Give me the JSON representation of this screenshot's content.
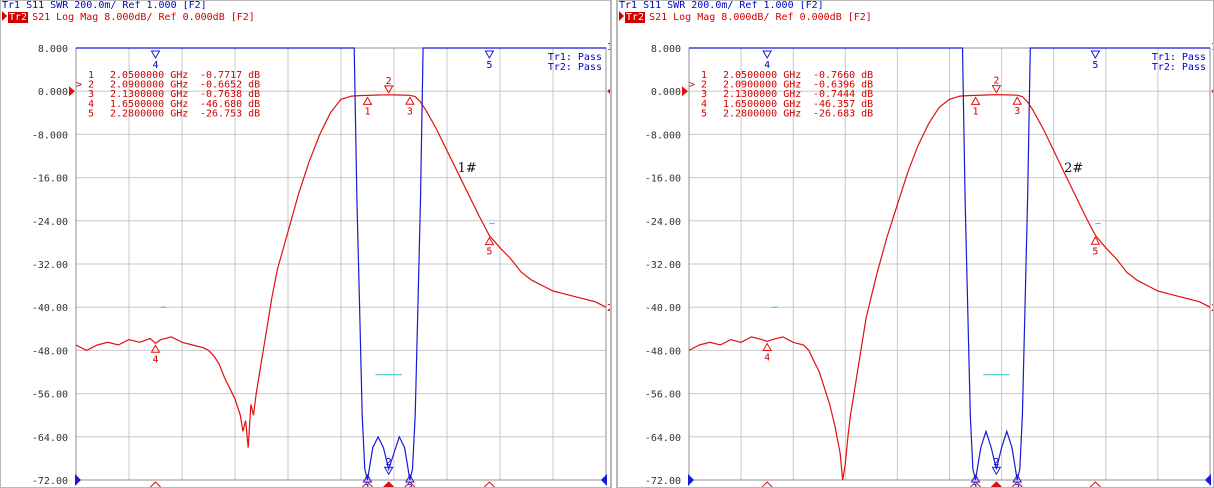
{
  "chart_data": [
    {
      "type": "line",
      "header": {
        "trace1": "Tr1 S11 SWR 200.0m/ Ref 1.000 [F2]",
        "trace2_badge": "Tr2",
        "trace2": "S21 Log Mag 8.000dB/ Ref 0.000dB [F2]"
      },
      "pass_labels": [
        "Tr1: Pass",
        "Tr2: Pass"
      ],
      "annotation": "1#",
      "yticks": [
        "8.000",
        "0.000",
        "-8.000",
        "-16.00",
        "-24.00",
        "-32.00",
        "-40.00",
        "-48.00",
        "-56.00",
        "-64.00",
        "-72.00"
      ],
      "ylim": [
        -72,
        8
      ],
      "xlim": [
        1.5,
        2.5
      ],
      "grid": true,
      "markers_table": [
        {
          "num": "1",
          "active": false,
          "freq": "2.0500000 GHz",
          "val": "-0.7717 dB"
        },
        {
          "num": "2",
          "active": true,
          "freq": "2.0900000 GHz",
          "val": "-0.6652 dB"
        },
        {
          "num": "3",
          "active": false,
          "freq": "2.1300000 GHz",
          "val": "-0.7638 dB"
        },
        {
          "num": "4",
          "active": false,
          "freq": "1.6500000 GHz",
          "val": "-46.680 dB"
        },
        {
          "num": "5",
          "active": false,
          "freq": "2.2800000 GHz",
          "val": "-26.753 dB"
        }
      ],
      "markers": [
        {
          "label": "1",
          "x": 2.05,
          "s21": -0.77
        },
        {
          "label": "2",
          "x": 2.09,
          "s21": -0.67
        },
        {
          "label": "3",
          "x": 2.13,
          "s21": -0.76
        },
        {
          "label": "4",
          "x": 1.65,
          "s21": -46.68
        },
        {
          "label": "5",
          "x": 2.28,
          "s21": -26.75
        }
      ],
      "series": [
        {
          "color": "#e01010",
          "x": [
            1.5,
            1.52,
            1.54,
            1.56,
            1.58,
            1.6,
            1.62,
            1.64,
            1.65,
            1.66,
            1.68,
            1.7,
            1.72,
            1.74,
            1.75,
            1.76,
            1.77,
            1.78,
            1.79,
            1.8,
            1.81,
            1.815,
            1.82,
            1.825,
            1.83,
            1.835,
            1.84,
            1.85,
            1.86,
            1.87,
            1.88,
            1.9,
            1.92,
            1.94,
            1.96,
            1.98,
            2.0,
            2.02,
            2.04,
            2.05,
            2.07,
            2.09,
            2.11,
            2.13,
            2.14,
            2.15,
            2.16,
            2.18,
            2.2,
            2.22,
            2.24,
            2.26,
            2.28,
            2.3,
            2.32,
            2.34,
            2.36,
            2.38,
            2.4,
            2.42,
            2.44,
            2.46,
            2.48,
            2.5
          ],
          "y": [
            -47,
            -48,
            -47,
            -46.5,
            -47,
            -46,
            -46.5,
            -45.8,
            -46.7,
            -46,
            -45.5,
            -46.5,
            -47,
            -47.5,
            -48,
            -49,
            -50.5,
            -53,
            -55,
            -57,
            -60,
            -63,
            -61,
            -66,
            -58,
            -60,
            -56,
            -50,
            -44,
            -38,
            -33,
            -26,
            -19,
            -13,
            -8,
            -4,
            -1.5,
            -0.9,
            -0.8,
            -0.77,
            -0.7,
            -0.67,
            -0.7,
            -0.76,
            -1,
            -2,
            -3.5,
            -7,
            -11,
            -15,
            -19,
            -23,
            -26.75,
            -29,
            -31,
            -33.5,
            -35,
            -36,
            -37,
            -37.5,
            -38,
            -38.5,
            -39,
            -40
          ]
        },
        {
          "color": "#1a1ad6",
          "x": [
            1.5,
            2.0,
            2.025,
            2.03,
            2.035,
            2.04,
            2.045,
            2.05,
            2.06,
            2.07,
            2.08,
            2.09,
            2.1,
            2.11,
            2.12,
            2.13,
            2.135,
            2.14,
            2.145,
            2.15,
            2.155,
            2.16,
            2.5
          ],
          "y": [
            8,
            8,
            8,
            -20,
            -40,
            -60,
            -70,
            -72,
            -66,
            -64,
            -66,
            -70,
            -67,
            -64,
            -66,
            -72,
            -70,
            -60,
            -40,
            -20,
            8,
            8,
            8
          ]
        }
      ],
      "limit_lines": [
        {
          "color": "#44cccc",
          "x": [
            2.065,
            2.115
          ],
          "y": -52.5
        },
        {
          "color": "#44cccc",
          "x": [
            1.66,
            1.67
          ],
          "y": -40
        },
        {
          "color": "#44cccc",
          "x": [
            2.28,
            2.29
          ],
          "y": -24.5
        }
      ]
    },
    {
      "type": "line",
      "header": {
        "trace1": "Tr1 S11 SWR 200.0m/ Ref 1.000 [F2]",
        "trace2_badge": "Tr2",
        "trace2": "S21 Log Mag 8.000dB/ Ref 0.000dB [F2]"
      },
      "pass_labels": [
        "Tr1: Pass",
        "Tr2: Pass"
      ],
      "annotation": "2#",
      "yticks": [
        "8.000",
        "0.000",
        "-8.000",
        "-16.00",
        "-24.00",
        "-32.00",
        "-40.00",
        "-48.00",
        "-56.00",
        "-64.00",
        "-72.00"
      ],
      "ylim": [
        -72,
        8
      ],
      "xlim": [
        1.5,
        2.5
      ],
      "grid": true,
      "markers_table": [
        {
          "num": "1",
          "active": false,
          "freq": "2.0500000 GHz",
          "val": "-0.7660 dB"
        },
        {
          "num": "2",
          "active": true,
          "freq": "2.0900000 GHz",
          "val": "-0.6396 dB"
        },
        {
          "num": "3",
          "active": false,
          "freq": "2.1300000 GHz",
          "val": "-0.7444 dB"
        },
        {
          "num": "4",
          "active": false,
          "freq": "1.6500000 GHz",
          "val": "-46.357 dB"
        },
        {
          "num": "5",
          "active": false,
          "freq": "2.2800000 GHz",
          "val": "-26.683 dB"
        }
      ],
      "markers": [
        {
          "label": "1",
          "x": 2.05,
          "s21": -0.77
        },
        {
          "label": "2",
          "x": 2.09,
          "s21": -0.64
        },
        {
          "label": "3",
          "x": 2.13,
          "s21": -0.74
        },
        {
          "label": "4",
          "x": 1.65,
          "s21": -46.36
        },
        {
          "label": "5",
          "x": 2.28,
          "s21": -26.68
        }
      ],
      "series": [
        {
          "color": "#e01010",
          "x": [
            1.5,
            1.52,
            1.54,
            1.56,
            1.58,
            1.6,
            1.62,
            1.64,
            1.65,
            1.66,
            1.68,
            1.7,
            1.72,
            1.73,
            1.74,
            1.75,
            1.76,
            1.77,
            1.78,
            1.79,
            1.795,
            1.8,
            1.805,
            1.81,
            1.82,
            1.83,
            1.84,
            1.86,
            1.88,
            1.9,
            1.92,
            1.94,
            1.96,
            1.98,
            2.0,
            2.02,
            2.04,
            2.05,
            2.07,
            2.09,
            2.11,
            2.13,
            2.14,
            2.15,
            2.16,
            2.18,
            2.2,
            2.22,
            2.24,
            2.26,
            2.28,
            2.3,
            2.32,
            2.34,
            2.36,
            2.38,
            2.4,
            2.42,
            2.44,
            2.46,
            2.48,
            2.5
          ],
          "y": [
            -48,
            -47,
            -46.5,
            -47,
            -46,
            -46.5,
            -45.5,
            -46,
            -46.36,
            -46,
            -45.5,
            -46.5,
            -47,
            -48,
            -50,
            -52,
            -55,
            -58,
            -62,
            -67,
            -72,
            -69,
            -64,
            -60,
            -54,
            -48,
            -42,
            -34,
            -27,
            -21,
            -15,
            -10,
            -6,
            -3,
            -1.5,
            -0.9,
            -0.8,
            -0.77,
            -0.7,
            -0.64,
            -0.68,
            -0.74,
            -1,
            -2,
            -3.5,
            -7,
            -11,
            -15,
            -19,
            -23,
            -26.7,
            -29,
            -31,
            -33.5,
            -35,
            -36,
            -37,
            -37.5,
            -38,
            -38.5,
            -39,
            -40
          ]
        },
        {
          "color": "#1a1ad6",
          "x": [
            1.5,
            2.0,
            2.025,
            2.03,
            2.035,
            2.04,
            2.045,
            2.05,
            2.06,
            2.07,
            2.08,
            2.09,
            2.1,
            2.11,
            2.12,
            2.13,
            2.135,
            2.14,
            2.145,
            2.15,
            2.155,
            2.16,
            2.5
          ],
          "y": [
            8,
            8,
            8,
            -20,
            -40,
            -60,
            -70,
            -72,
            -66,
            -63,
            -66,
            -70,
            -66,
            -63,
            -66,
            -72,
            -70,
            -60,
            -40,
            -20,
            8,
            8,
            8
          ]
        }
      ],
      "limit_lines": [
        {
          "color": "#44cccc",
          "x": [
            2.065,
            2.115
          ],
          "y": -52.5
        },
        {
          "color": "#44cccc",
          "x": [
            1.66,
            1.67
          ],
          "y": -40
        },
        {
          "color": "#44cccc",
          "x": [
            2.28,
            2.29
          ],
          "y": -24.5
        }
      ]
    }
  ]
}
